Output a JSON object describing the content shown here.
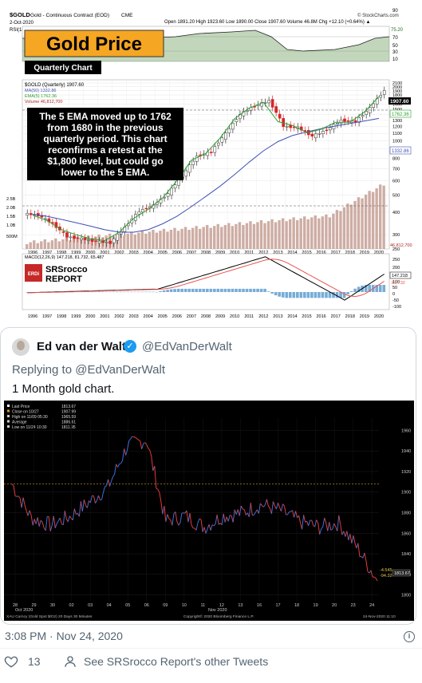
{
  "quarterly_chart": {
    "symbol": "$GOLD",
    "symbol_desc": "Gold - Continuous Contract (EOD)",
    "exchange": "CME",
    "date": "2-Oct-2020",
    "quote": "Open 1891.20  High 1923.60  Low 1890.00  Close 1907.60  Volume 46.8M  Chg +12.10 (+0.64%) ▲",
    "source": "© StockCharts.com",
    "rsi_label": "RSI(14) 75.20",
    "title_box": "Gold Price",
    "subtitle_box": "Quarterly Chart",
    "legend": [
      "$GOLD (Quarterly) 1907.60",
      "MA(50) 1332.86",
      "EMA(5) 1762.36",
      "Volume 46,812,700"
    ],
    "macd_label": "MACD(12,26,9) 147.218, 81.732, 65.487",
    "annotation": [
      "The 5 EMA moved up to 1762",
      "from 1680 in the previous",
      "quarterly period.  This chart",
      "reconfirms a retest at the",
      "$1,800 level, but could go",
      "lower to the 5 EMA."
    ],
    "logo_mark": "ERDi",
    "logo_text": [
      "SRSrocco",
      "REPORT"
    ],
    "price_badges": [
      "1907.60",
      "1762.36",
      "1332.86"
    ],
    "rsi_ticks": [
      "90",
      "70",
      "50",
      "30",
      "10"
    ],
    "rsi_badges": [
      "75.20",
      "70"
    ],
    "price_ticks": [
      "2100",
      "2000",
      "1900",
      "1800",
      "1700",
      "1600",
      "1500",
      "1400",
      "1300",
      "1200",
      "1100",
      "1000",
      "900",
      "800",
      "700",
      "600",
      "500",
      "400",
      "300",
      "250"
    ],
    "volume_ticks": [
      "2.5B",
      "2.0B",
      "1.5B",
      "1.0B",
      "500M"
    ],
    "volume_badge": "46,812,700",
    "macd_ticks": [
      "250",
      "200",
      "150",
      "100",
      "50",
      "0",
      "-50",
      "-100"
    ],
    "macd_badges": [
      "147.218",
      "81.732"
    ],
    "years": [
      "1996",
      "1997",
      "1998",
      "1999",
      "2000",
      "2001",
      "2002",
      "2003",
      "2004",
      "2005",
      "2006",
      "2007",
      "2008",
      "2009",
      "2010",
      "2011",
      "2012",
      "2013",
      "2014",
      "2015",
      "2016",
      "2017",
      "2018",
      "2019",
      "2020"
    ],
    "colors": {
      "candle_up": "#ffffff",
      "candle_down": "#d62728",
      "ema": "#2ca02c",
      "ma": "#3f51b5",
      "annotation_bg": "#000000",
      "title_bg": "#f5a623",
      "macd": "#000000",
      "signal": "#e8554e",
      "histogram": "#4a90c8",
      "volume": "#b22222"
    }
  },
  "tweet": {
    "name": "Ed van der Walt",
    "handle": "@EdVanDerWalt",
    "replying_prefix": "Replying to",
    "replying_to": "@EdVanDerWalt",
    "text": "1 Month gold chart.",
    "timestamp": "3:08 PM · Nov 24, 2020",
    "likes": "13",
    "see_more": "See SRSrocco Report's other Tweets",
    "icons": [
      "avatar",
      "verified-badge-icon",
      "info-icon",
      "heart-icon",
      "person-icon"
    ]
  },
  "month_chart": {
    "legend": [
      {
        "label": "Last Price",
        "value": "1813.67"
      },
      {
        "label": "Close on 10/27",
        "value": "1907.99"
      },
      {
        "label": "High on 11/09 05:30",
        "value": "1965.59"
      },
      {
        "label": "Average",
        "value": "1886.61"
      },
      {
        "label": "Low on 11/24 10:30",
        "value": "1811.95"
      }
    ],
    "y_ticks": [
      "1960",
      "1940",
      "1920",
      "1900",
      "1880",
      "1860",
      "1840",
      "1820",
      "1800"
    ],
    "x_labels": [
      "28",
      "29",
      "30",
      "02",
      "03",
      "04",
      "05",
      "06",
      "09",
      "10",
      "11",
      "12",
      "13",
      "16",
      "17",
      "18",
      "19",
      "20",
      "23",
      "24"
    ],
    "month_labels": [
      "Oct 2020",
      "Nov 2020"
    ],
    "change_labels": [
      "-4.545",
      "-94.32"
    ],
    "last_badge": "1813.67",
    "footer_left": "XAU Curncy (Gold Spot  $/Oz) 20 Days 30 Minutes",
    "footer_right": "24-Nov-2020 11:10",
    "copyright": "Copyright© 2020 Bloomberg Finance L.P.",
    "colors": {
      "up": "#3a6fd8",
      "down": "#e23b3b",
      "ref_line": "#c9a227",
      "background": "#000000"
    }
  },
  "chart_data": [
    {
      "type": "line",
      "title": "Gold Price",
      "subtitle": "Quarterly Chart",
      "x": [
        "1996",
        "1997",
        "1998",
        "1999",
        "2000",
        "2001",
        "2002",
        "2003",
        "2004",
        "2005",
        "2006",
        "2007",
        "2008",
        "2009",
        "2010",
        "2011",
        "2012",
        "2013",
        "2014",
        "2015",
        "2016",
        "2017",
        "2018",
        "2019",
        "2020"
      ],
      "series": [
        {
          "name": "$GOLD (Quarterly)",
          "values": [
            385,
            345,
            292,
            285,
            275,
            270,
            330,
            405,
            438,
            508,
            635,
            820,
            870,
            1095,
            1405,
            1565,
            1670,
            1205,
            1185,
            1060,
            1150,
            1300,
            1280,
            1520,
            1907.6
          ]
        },
        {
          "name": "EMA(5)",
          "values": [
            385,
            360,
            320,
            300,
            285,
            278,
            310,
            370,
            415,
            480,
            600,
            780,
            850,
            1040,
            1330,
            1520,
            1640,
            1280,
            1220,
            1110,
            1160,
            1270,
            1270,
            1450,
            1762.36
          ]
        },
        {
          "name": "MA(50)",
          "values": [
            390,
            380,
            365,
            350,
            335,
            320,
            310,
            310,
            320,
            345,
            380,
            430,
            490,
            560,
            650,
            760,
            880,
            990,
            1070,
            1120,
            1170,
            1210,
            1250,
            1290,
            1332.86
          ]
        }
      ],
      "ylim": [
        250,
        2100
      ]
    },
    {
      "type": "line",
      "title": "1 Month gold chart",
      "x": [
        "28",
        "29",
        "30",
        "02",
        "03",
        "04",
        "05",
        "06",
        "09",
        "10",
        "11",
        "12",
        "13",
        "16",
        "17",
        "18",
        "19",
        "20",
        "23",
        "24"
      ],
      "series": [
        {
          "name": "XAU Curncy",
          "values": [
            1908,
            1875,
            1868,
            1876,
            1890,
            1905,
            1945,
            1951,
            1872,
            1877,
            1866,
            1877,
            1880,
            1888,
            1882,
            1871,
            1866,
            1870,
            1845,
            1813.67
          ]
        }
      ],
      "ylim": [
        1800,
        1970
      ]
    }
  ]
}
